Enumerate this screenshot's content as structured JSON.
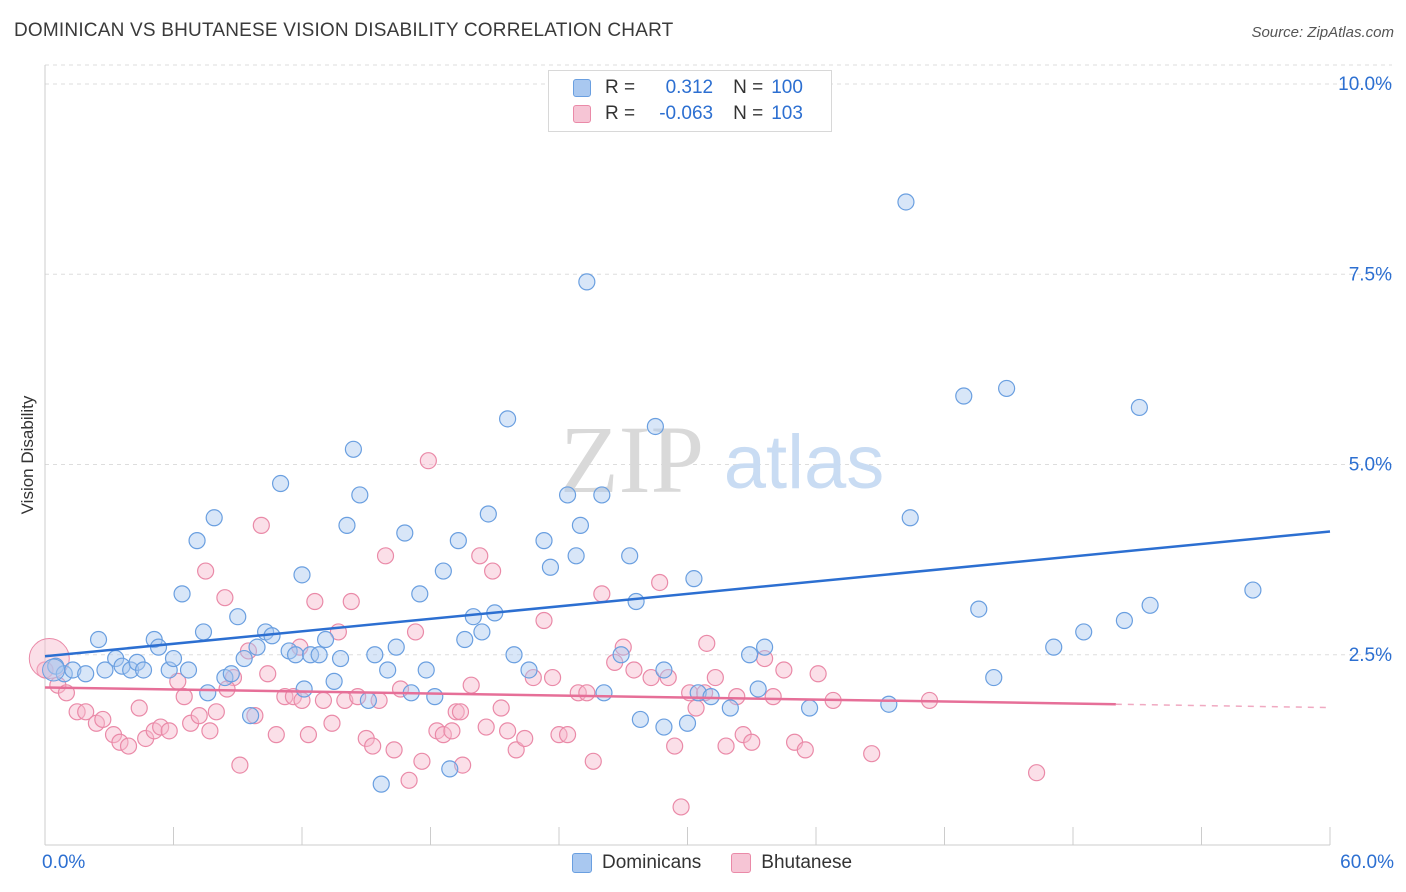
{
  "title": "DOMINICAN VS BHUTANESE VISION DISABILITY CORRELATION CHART",
  "source": "Source: ZipAtlas.com",
  "watermark": {
    "zip": "ZIP",
    "atlas": "atlas"
  },
  "legend": {
    "rows": [
      {
        "r_label": "R =",
        "r_value": "0.312",
        "n_label": "N =",
        "n_value": "100"
      },
      {
        "r_label": "R =",
        "r_value": "-0.063",
        "n_label": "N =",
        "n_value": "103"
      }
    ]
  },
  "bottom_legend": [
    "Dominicans",
    "Bhutanese"
  ],
  "colors": {
    "blue_fill": "#a9c8f0",
    "blue_stroke": "#6a9fe0",
    "blue_line": "#2c6fd1",
    "pink_fill": "#f6b8cc",
    "pink_stroke": "#ea8aa8",
    "pink_line": "#e66f98",
    "axis_text": "#2c6fd1",
    "grid": "#dddddd"
  },
  "chart_data": {
    "type": "scatter",
    "title": "DOMINICAN VS BHUTANESE VISION DISABILITY CORRELATION CHART",
    "xlabel": "",
    "ylabel": "Vision Disability",
    "xlim": [
      0,
      60
    ],
    "ylim": [
      0,
      10.25
    ],
    "x_tick_labels": [
      "0.0%",
      "60.0%"
    ],
    "y_ticks": [
      2.5,
      5.0,
      7.5,
      10.0
    ],
    "y_tick_labels": [
      "2.5%",
      "5.0%",
      "7.5%",
      "10.0%"
    ],
    "grid": true,
    "legend_position": "top-center",
    "series": [
      {
        "name": "Dominicans",
        "color": "#6a9fe0",
        "trend": {
          "x": [
            0,
            60
          ],
          "y": [
            2.48,
            4.12
          ]
        },
        "points": [
          [
            0.5,
            2.35
          ],
          [
            0.9,
            2.25
          ],
          [
            1.3,
            2.3
          ],
          [
            1.9,
            2.25
          ],
          [
            2.5,
            2.7
          ],
          [
            2.8,
            2.3
          ],
          [
            3.3,
            2.45
          ],
          [
            3.6,
            2.35
          ],
          [
            4.0,
            2.3
          ],
          [
            4.3,
            2.4
          ],
          [
            4.6,
            2.3
          ],
          [
            5.1,
            2.7
          ],
          [
            5.3,
            2.6
          ],
          [
            5.8,
            2.3
          ],
          [
            6.0,
            2.45
          ],
          [
            6.4,
            3.3
          ],
          [
            6.7,
            2.3
          ],
          [
            7.1,
            4.0
          ],
          [
            7.4,
            2.8
          ],
          [
            7.6,
            2.0
          ],
          [
            7.9,
            4.3
          ],
          [
            8.4,
            2.2
          ],
          [
            8.7,
            2.25
          ],
          [
            9.0,
            3.0
          ],
          [
            9.3,
            2.45
          ],
          [
            9.6,
            1.7
          ],
          [
            9.9,
            2.6
          ],
          [
            10.3,
            2.8
          ],
          [
            10.6,
            2.75
          ],
          [
            11.0,
            4.75
          ],
          [
            11.4,
            2.55
          ],
          [
            11.7,
            2.5
          ],
          [
            12.0,
            3.55
          ],
          [
            12.4,
            2.5
          ],
          [
            12.8,
            2.5
          ],
          [
            13.1,
            2.7
          ],
          [
            13.5,
            2.15
          ],
          [
            13.8,
            2.45
          ],
          [
            14.1,
            4.2
          ],
          [
            14.4,
            5.2
          ],
          [
            14.7,
            4.6
          ],
          [
            15.1,
            1.9
          ],
          [
            15.4,
            2.5
          ],
          [
            15.7,
            0.8
          ],
          [
            16.0,
            2.3
          ],
          [
            16.4,
            2.6
          ],
          [
            16.8,
            4.1
          ],
          [
            17.1,
            2.0
          ],
          [
            17.5,
            3.3
          ],
          [
            17.8,
            2.3
          ],
          [
            18.2,
            1.95
          ],
          [
            18.6,
            3.6
          ],
          [
            18.9,
            1.0
          ],
          [
            19.3,
            4.0
          ],
          [
            19.6,
            2.7
          ],
          [
            20.0,
            3.0
          ],
          [
            20.4,
            2.8
          ],
          [
            20.7,
            4.35
          ],
          [
            21.0,
            3.05
          ],
          [
            21.6,
            5.6
          ],
          [
            21.9,
            2.5
          ],
          [
            22.6,
            2.3
          ],
          [
            23.3,
            4.0
          ],
          [
            23.6,
            3.65
          ],
          [
            24.4,
            4.6
          ],
          [
            24.8,
            3.8
          ],
          [
            25.0,
            4.2
          ],
          [
            25.3,
            7.4
          ],
          [
            26.0,
            4.6
          ],
          [
            26.1,
            2.0
          ],
          [
            26.9,
            2.5
          ],
          [
            27.3,
            3.8
          ],
          [
            27.6,
            3.2
          ],
          [
            27.8,
            1.65
          ],
          [
            28.5,
            5.5
          ],
          [
            28.9,
            1.55
          ],
          [
            28.9,
            2.3
          ],
          [
            30.0,
            1.6
          ],
          [
            30.3,
            3.5
          ],
          [
            30.5,
            2.0
          ],
          [
            32.9,
            2.5
          ],
          [
            32.0,
            1.8
          ],
          [
            33.3,
            2.05
          ],
          [
            33.6,
            2.6
          ],
          [
            40.2,
            8.45
          ],
          [
            40.4,
            4.3
          ],
          [
            42.9,
            5.9
          ],
          [
            43.6,
            3.1
          ],
          [
            44.3,
            2.2
          ],
          [
            44.9,
            6.0
          ],
          [
            47.1,
            2.6
          ],
          [
            48.5,
            2.8
          ],
          [
            50.4,
            2.95
          ],
          [
            51.1,
            5.75
          ],
          [
            51.6,
            3.15
          ],
          [
            56.4,
            3.35
          ],
          [
            12.1,
            2.05
          ],
          [
            31.1,
            1.95
          ],
          [
            35.7,
            1.8
          ],
          [
            39.4,
            1.85
          ]
        ]
      },
      {
        "name": "Bhutanese",
        "color": "#ea8aa8",
        "trend": {
          "x": [
            0,
            50
          ],
          "y": [
            2.07,
            1.85
          ]
        },
        "points": [
          [
            0.0,
            2.3
          ],
          [
            0.6,
            2.1
          ],
          [
            1.0,
            2.0
          ],
          [
            1.5,
            1.75
          ],
          [
            1.9,
            1.75
          ],
          [
            2.4,
            1.6
          ],
          [
            2.7,
            1.65
          ],
          [
            3.2,
            1.45
          ],
          [
            3.5,
            1.35
          ],
          [
            3.9,
            1.3
          ],
          [
            4.4,
            1.8
          ],
          [
            4.7,
            1.4
          ],
          [
            5.1,
            1.5
          ],
          [
            5.4,
            1.55
          ],
          [
            5.8,
            1.5
          ],
          [
            6.2,
            2.15
          ],
          [
            6.5,
            1.95
          ],
          [
            6.8,
            1.6
          ],
          [
            7.2,
            1.7
          ],
          [
            7.5,
            3.6
          ],
          [
            7.7,
            1.5
          ],
          [
            8.0,
            1.75
          ],
          [
            8.4,
            3.25
          ],
          [
            8.8,
            2.2
          ],
          [
            9.1,
            1.05
          ],
          [
            9.5,
            2.55
          ],
          [
            9.8,
            1.7
          ],
          [
            10.1,
            4.2
          ],
          [
            10.4,
            2.25
          ],
          [
            10.8,
            1.45
          ],
          [
            11.2,
            1.95
          ],
          [
            11.6,
            1.95
          ],
          [
            11.9,
            2.6
          ],
          [
            12.3,
            1.45
          ],
          [
            12.6,
            3.2
          ],
          [
            13.0,
            1.9
          ],
          [
            13.4,
            1.6
          ],
          [
            13.7,
            2.8
          ],
          [
            14.0,
            1.9
          ],
          [
            14.3,
            3.2
          ],
          [
            14.6,
            1.95
          ],
          [
            15.0,
            1.4
          ],
          [
            15.3,
            1.3
          ],
          [
            15.6,
            1.9
          ],
          [
            15.9,
            3.8
          ],
          [
            16.3,
            1.25
          ],
          [
            16.6,
            2.05
          ],
          [
            17.0,
            0.85
          ],
          [
            17.3,
            2.8
          ],
          [
            17.6,
            1.1
          ],
          [
            17.9,
            5.05
          ],
          [
            18.3,
            1.5
          ],
          [
            18.6,
            1.45
          ],
          [
            19.0,
            1.5
          ],
          [
            19.2,
            1.75
          ],
          [
            19.5,
            1.05
          ],
          [
            19.9,
            2.1
          ],
          [
            20.3,
            3.8
          ],
          [
            20.6,
            1.55
          ],
          [
            20.9,
            3.6
          ],
          [
            21.3,
            1.8
          ],
          [
            21.6,
            1.5
          ],
          [
            22.0,
            1.25
          ],
          [
            22.4,
            1.4
          ],
          [
            22.8,
            2.2
          ],
          [
            23.3,
            2.95
          ],
          [
            23.7,
            2.2
          ],
          [
            24.0,
            1.45
          ],
          [
            24.4,
            1.45
          ],
          [
            24.9,
            2.0
          ],
          [
            25.3,
            2.0
          ],
          [
            25.6,
            1.1
          ],
          [
            26.0,
            3.3
          ],
          [
            26.6,
            2.4
          ],
          [
            27.0,
            2.6
          ],
          [
            27.5,
            2.3
          ],
          [
            28.3,
            2.2
          ],
          [
            28.7,
            3.45
          ],
          [
            29.1,
            2.2
          ],
          [
            29.4,
            1.3
          ],
          [
            29.7,
            0.5
          ],
          [
            30.1,
            2.0
          ],
          [
            30.4,
            1.8
          ],
          [
            30.9,
            2.65
          ],
          [
            31.3,
            2.2
          ],
          [
            31.8,
            1.3
          ],
          [
            32.3,
            1.95
          ],
          [
            32.6,
            1.45
          ],
          [
            33.0,
            1.35
          ],
          [
            33.6,
            2.45
          ],
          [
            34.0,
            1.95
          ],
          [
            34.5,
            2.3
          ],
          [
            35.0,
            1.35
          ],
          [
            35.5,
            1.25
          ],
          [
            36.1,
            2.25
          ],
          [
            36.8,
            1.9
          ],
          [
            38.6,
            1.2
          ],
          [
            41.3,
            1.9
          ],
          [
            46.3,
            0.95
          ],
          [
            19.4,
            1.75
          ],
          [
            12.0,
            1.9
          ],
          [
            8.5,
            2.05
          ],
          [
            30.8,
            2.0
          ]
        ]
      }
    ]
  }
}
